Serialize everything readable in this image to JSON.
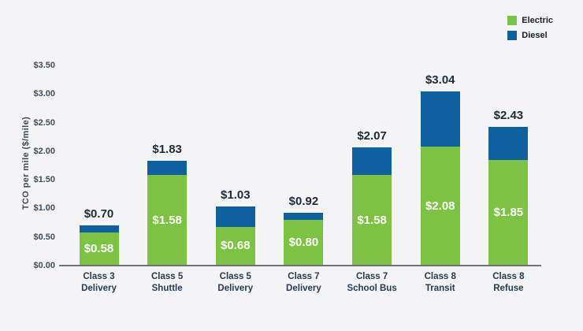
{
  "legend": {
    "items": [
      {
        "label": "Electric",
        "color": "#7dc343"
      },
      {
        "label": "Diesel",
        "color": "#0f609f"
      }
    ]
  },
  "chart_data": {
    "type": "bar",
    "stacked": true,
    "title": "",
    "xlabel": "",
    "ylabel": "TCO per mile ($/mile)",
    "ylim": [
      0,
      3.5
    ],
    "yticks": [
      0,
      0.5,
      1.0,
      1.5,
      2.0,
      2.5,
      3.0,
      3.5
    ],
    "ytick_labels": [
      "$0.00",
      "$0.50",
      "$1.00",
      "$1.50",
      "$2.00",
      "$2.50",
      "$3.00",
      "$3.50"
    ],
    "grid": false,
    "legend_position": "top-right",
    "categories": [
      [
        "Class 3",
        "Delivery"
      ],
      [
        "Class 5",
        "Shuttle"
      ],
      [
        "Class 5",
        "Delivery"
      ],
      [
        "Class 7",
        "Delivery"
      ],
      [
        "Class 7",
        "School Bus"
      ],
      [
        "Class 8",
        "Transit"
      ],
      [
        "Class 8",
        "Refuse"
      ]
    ],
    "series": [
      {
        "name": "Electric",
        "color": "#7dc343",
        "values": [
          0.58,
          1.58,
          0.68,
          0.8,
          1.58,
          2.08,
          1.85
        ],
        "labels": [
          "$0.58",
          "$1.58",
          "$0.68",
          "$0.80",
          "$1.58",
          "$2.08",
          "$1.85"
        ]
      },
      {
        "name": "Diesel",
        "color": "#0f609f",
        "values": [
          0.12,
          0.25,
          0.35,
          0.12,
          0.49,
          0.96,
          0.58
        ]
      }
    ],
    "bar_totals": [
      0.7,
      1.83,
      1.03,
      0.92,
      2.07,
      3.04,
      2.43
    ],
    "bar_total_labels": [
      "$0.70",
      "$1.83",
      "$1.03",
      "$0.92",
      "$2.07",
      "$3.04",
      "$2.43"
    ],
    "colors": {
      "electric": "#7dc343",
      "diesel": "#0f609f",
      "background": "#f4f4f6",
      "axis_line": "#6e7276",
      "tick_text": "#3f4d5a",
      "value_text": "#1c2b38",
      "category_text": "#253c54",
      "inside_label_text": "#ffffff"
    }
  }
}
